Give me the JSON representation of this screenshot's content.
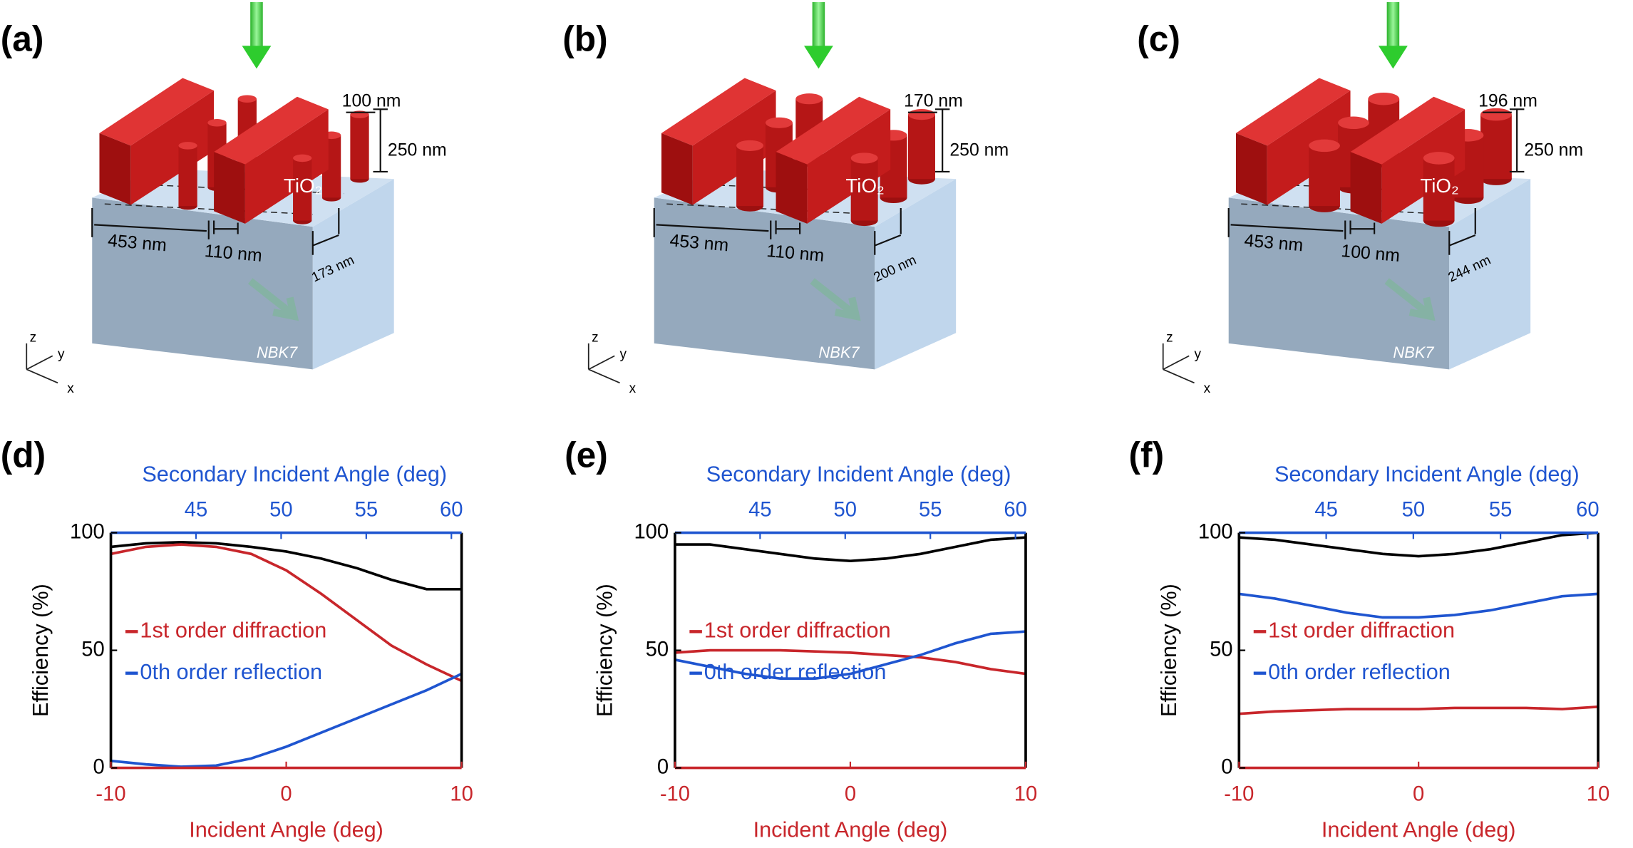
{
  "diagrams": [
    {
      "label": "(a)",
      "pitch": "453 nm",
      "gap": "110 nm",
      "spacing": "173 nm",
      "diameter": "100 nm",
      "height": "250 nm",
      "material": "TiO₂",
      "substrate": "NBK7",
      "axes": [
        "z",
        "y",
        "x"
      ]
    },
    {
      "label": "(b)",
      "pitch": "453 nm",
      "gap": "110 nm",
      "spacing": "200 nm",
      "diameter": "170 nm",
      "height": "250 nm",
      "material": "TiO₂",
      "substrate": "NBK7",
      "axes": [
        "z",
        "y",
        "x"
      ]
    },
    {
      "label": "(c)",
      "pitch": "453 nm",
      "gap": "100 nm",
      "spacing": "244 nm",
      "diameter": "196 nm",
      "height": "250 nm",
      "material": "TiO₂",
      "substrate": "NBK7",
      "axes": [
        "z",
        "y",
        "x"
      ]
    }
  ],
  "chart_data": [
    {
      "type": "line",
      "panel": "(d)",
      "xlabel": "Incident Angle (deg)",
      "x2label": "Secondary Incident Angle (deg)",
      "ylabel": "Efficiency (%)",
      "x": [
        -10,
        -8,
        -6,
        -4,
        -2,
        0,
        2,
        4,
        6,
        8,
        10
      ],
      "xlim": [
        -10,
        10
      ],
      "xticks": [
        -10,
        0,
        10
      ],
      "x2lim": [
        40,
        60.6
      ],
      "x2ticks": [
        45,
        50,
        55,
        60
      ],
      "ylim": [
        0,
        100
      ],
      "yticks": [
        0,
        50,
        100
      ],
      "xaxis_color": "#c8262b",
      "x2axis_color": "#1f55d0",
      "legend": "center-left",
      "series": [
        {
          "color": "#000000",
          "values": [
            94,
            95.5,
            96,
            95.5,
            94,
            92,
            89,
            85,
            80,
            76,
            76
          ]
        },
        {
          "name": "1st order diffraction",
          "color": "#c8262b",
          "values": [
            91,
            94,
            95,
            94,
            91,
            84,
            74,
            63,
            52,
            44,
            37
          ]
        },
        {
          "name": "0th order reflection",
          "color": "#1f55d0",
          "values": [
            3,
            1.5,
            0.5,
            1,
            4,
            9,
            15,
            21,
            27,
            33,
            40
          ]
        }
      ]
    },
    {
      "type": "line",
      "panel": "(e)",
      "xlabel": "Incident Angle (deg)",
      "x2label": "Secondary Incident Angle (deg)",
      "ylabel": "Efficiency (%)",
      "x": [
        -10,
        -8,
        -6,
        -4,
        -2,
        0,
        2,
        4,
        6,
        8,
        10
      ],
      "xlim": [
        -10,
        10
      ],
      "xticks": [
        -10,
        0,
        10
      ],
      "x2lim": [
        40,
        60.6
      ],
      "x2ticks": [
        45,
        50,
        55,
        60
      ],
      "ylim": [
        0,
        100
      ],
      "yticks": [
        0,
        50,
        100
      ],
      "xaxis_color": "#c8262b",
      "x2axis_color": "#1f55d0",
      "legend": "center-left",
      "series": [
        {
          "color": "#000000",
          "values": [
            95,
            95,
            93,
            91,
            89,
            88,
            89,
            91,
            94,
            97,
            98
          ]
        },
        {
          "name": "1st order diffraction",
          "color": "#c8262b",
          "values": [
            49,
            50,
            50,
            50,
            49.5,
            49,
            48,
            47,
            45,
            42,
            40
          ]
        },
        {
          "name": "0th order reflection",
          "color": "#1f55d0",
          "values": [
            46,
            43,
            40,
            38,
            38,
            40,
            44,
            48,
            53,
            57,
            58
          ]
        }
      ]
    },
    {
      "type": "line",
      "panel": "(f)",
      "xlabel": "Incident Angle (deg)",
      "x2label": "Secondary Incident Angle (deg)",
      "ylabel": "Efficiency (%)",
      "x": [
        -10,
        -8,
        -6,
        -4,
        -2,
        0,
        2,
        4,
        6,
        8,
        10
      ],
      "xlim": [
        -10,
        10
      ],
      "xticks": [
        -10,
        0,
        10
      ],
      "x2lim": [
        40,
        60.6
      ],
      "x2ticks": [
        45,
        50,
        55,
        60
      ],
      "ylim": [
        0,
        100
      ],
      "yticks": [
        0,
        50,
        100
      ],
      "xaxis_color": "#c8262b",
      "x2axis_color": "#1f55d0",
      "legend": "center-left",
      "series": [
        {
          "color": "#000000",
          "values": [
            98,
            97,
            95,
            93,
            91,
            90,
            91,
            93,
            96,
            99,
            100
          ]
        },
        {
          "name": "1st order diffraction",
          "color": "#c8262b",
          "values": [
            23,
            24,
            24.5,
            25,
            25,
            25,
            25.5,
            25.5,
            25.5,
            25,
            26
          ]
        },
        {
          "name": "0th order reflection",
          "color": "#1f55d0",
          "values": [
            74,
            72,
            69,
            66,
            64,
            64,
            65,
            67,
            70,
            73,
            74
          ]
        }
      ]
    }
  ]
}
